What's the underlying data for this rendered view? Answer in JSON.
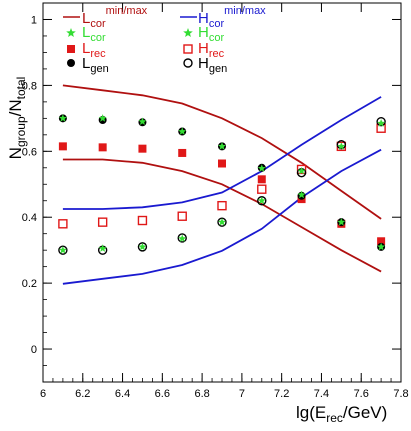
{
  "chart_data": {
    "type": "scatter",
    "ylabel": {
      "main": "N",
      "sub1": "group",
      "mid": "/N",
      "sub2": "total"
    },
    "xlabel": {
      "main": "lg(E",
      "sub": "rec",
      "tail": "/GeV)"
    },
    "xlim": [
      6,
      7.8
    ],
    "ylim": [
      -0.1,
      1.05
    ],
    "xticks": [
      "6",
      "6.2",
      "6.4",
      "6.6",
      "6.8",
      "7",
      "7.2",
      "7.4",
      "7.6",
      "7.8"
    ],
    "yticks": [
      "0",
      "0.2",
      "0.4",
      "0.6",
      "0.8",
      "1"
    ],
    "legend": {
      "l_cor": {
        "main": "L",
        "sub": "cor",
        "sup": "min/max"
      },
      "h_cor": {
        "main": "H",
        "sub": "cor",
        "sup": "min/max"
      },
      "l_cor_star": {
        "main": "L",
        "sub": "cor"
      },
      "h_cor_star": {
        "main": "H",
        "sub": "cor"
      },
      "l_rec": {
        "main": "L",
        "sub": "rec"
      },
      "h_rec": {
        "main": "H",
        "sub": "rec"
      },
      "l_gen": {
        "main": "L",
        "sub": "gen"
      },
      "h_gen": {
        "main": "H",
        "sub": "gen"
      }
    },
    "colors": {
      "light_lines": "#b01010",
      "heavy_lines": "#1a1ad0",
      "rec": "#e01818",
      "star": "#33dd33",
      "gen": "#000000"
    },
    "x": [
      6.1,
      6.3,
      6.5,
      6.7,
      6.9,
      7.1,
      7.3,
      7.5,
      7.7
    ],
    "series": [
      {
        "key": "l_cor_max",
        "kind": "line",
        "color": "#b01010",
        "values": [
          0.8,
          0.785,
          0.77,
          0.745,
          0.7,
          0.64,
          0.565,
          0.48,
          0.395
        ]
      },
      {
        "key": "l_cor_min",
        "kind": "line",
        "color": "#b01010",
        "values": [
          0.575,
          0.575,
          0.565,
          0.54,
          0.5,
          0.44,
          0.37,
          0.3,
          0.235
        ]
      },
      {
        "key": "h_cor_max",
        "kind": "line",
        "color": "#1a1ad0",
        "values": [
          0.425,
          0.425,
          0.43,
          0.445,
          0.475,
          0.54,
          0.62,
          0.695,
          0.765
        ]
      },
      {
        "key": "h_cor_min",
        "kind": "line",
        "color": "#1a1ad0",
        "values": [
          0.198,
          0.213,
          0.228,
          0.255,
          0.298,
          0.365,
          0.46,
          0.54,
          0.605
        ]
      },
      {
        "key": "l_rec",
        "kind": "filled_square",
        "color": "#e01818",
        "values": [
          0.615,
          0.612,
          0.608,
          0.595,
          0.563,
          0.515,
          0.455,
          0.38,
          0.327
        ]
      },
      {
        "key": "h_rec",
        "kind": "open_square",
        "color": "#e01818",
        "values": [
          0.38,
          0.385,
          0.39,
          0.403,
          0.435,
          0.485,
          0.545,
          0.615,
          0.67
        ]
      },
      {
        "key": "l_gen",
        "kind": "filled_circle",
        "color": "#000000",
        "values": [
          0.7,
          0.695,
          0.688,
          0.66,
          0.615,
          0.55,
          0.465,
          0.385,
          0.31
        ]
      },
      {
        "key": "h_gen",
        "kind": "open_circle",
        "color": "#000000",
        "values": [
          0.3,
          0.3,
          0.31,
          0.337,
          0.385,
          0.45,
          0.535,
          0.62,
          0.69
        ]
      },
      {
        "key": "l_cor",
        "kind": "star",
        "color": "#33dd33",
        "values": [
          0.7,
          0.7,
          0.69,
          0.66,
          0.615,
          0.548,
          0.468,
          0.385,
          0.31
        ]
      },
      {
        "key": "h_cor",
        "kind": "star",
        "color": "#33dd33",
        "values": [
          0.3,
          0.305,
          0.31,
          0.335,
          0.385,
          0.45,
          0.54,
          0.615,
          0.685
        ]
      }
    ]
  }
}
